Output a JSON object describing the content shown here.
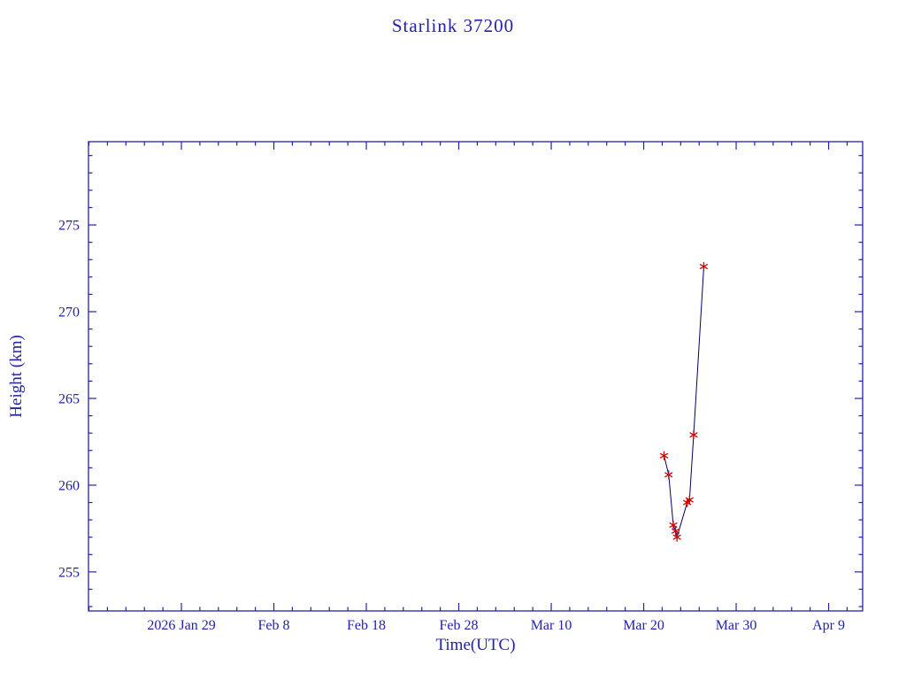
{
  "page": {
    "background": "#ffffff"
  },
  "chart_data": {
    "type": "line",
    "title": "Starlink 37200",
    "xlabel": "Time(UTC)",
    "ylabel": "Height (km)",
    "x_unit": "days since 2026 Jan 29 00:00 UTC",
    "xlim": [
      -10.05,
      73.68
    ],
    "ylim": [
      252.75,
      279.8
    ],
    "grid": false,
    "legend": null,
    "x_ticks": [
      {
        "value": 0,
        "label": "2026 Jan 29"
      },
      {
        "value": 10,
        "label": "Feb 8"
      },
      {
        "value": 20,
        "label": "Feb 18"
      },
      {
        "value": 30,
        "label": "Feb 28"
      },
      {
        "value": 40,
        "label": "Mar 10"
      },
      {
        "value": 50,
        "label": "Mar 20"
      },
      {
        "value": 60,
        "label": "Mar 30"
      },
      {
        "value": 70,
        "label": "Apr 9"
      }
    ],
    "x_minor_step": 2,
    "y_ticks": [
      {
        "value": 255,
        "label": "255"
      },
      {
        "value": 260,
        "label": "260"
      },
      {
        "value": 265,
        "label": "265"
      },
      {
        "value": 270,
        "label": "270"
      },
      {
        "value": 275,
        "label": "275"
      }
    ],
    "y_minor_step": 1,
    "colors": {
      "axis_and_text": "#2222aa",
      "line": "#000066",
      "marker": "#cc0000"
    },
    "series": [
      {
        "name": "Height (km)",
        "marker": "asterisk",
        "points": [
          {
            "x": 52.2,
            "approx_date": "Mar 22",
            "y": 261.7
          },
          {
            "x": 52.7,
            "approx_date": "Mar 22",
            "y": 260.6
          },
          {
            "x": 53.2,
            "approx_date": "Mar 23",
            "y": 257.7
          },
          {
            "x": 53.45,
            "approx_date": "Mar 23",
            "y": 257.35
          },
          {
            "x": 53.6,
            "approx_date": "Mar 23",
            "y": 257.0
          },
          {
            "x": 54.7,
            "approx_date": "Mar 24",
            "y": 259.0
          },
          {
            "x": 54.95,
            "approx_date": "Mar 25",
            "y": 259.15
          },
          {
            "x": 55.4,
            "approx_date": "Mar 25",
            "y": 262.9
          },
          {
            "x": 56.5,
            "approx_date": "Mar 26",
            "y": 272.6
          }
        ]
      }
    ]
  }
}
